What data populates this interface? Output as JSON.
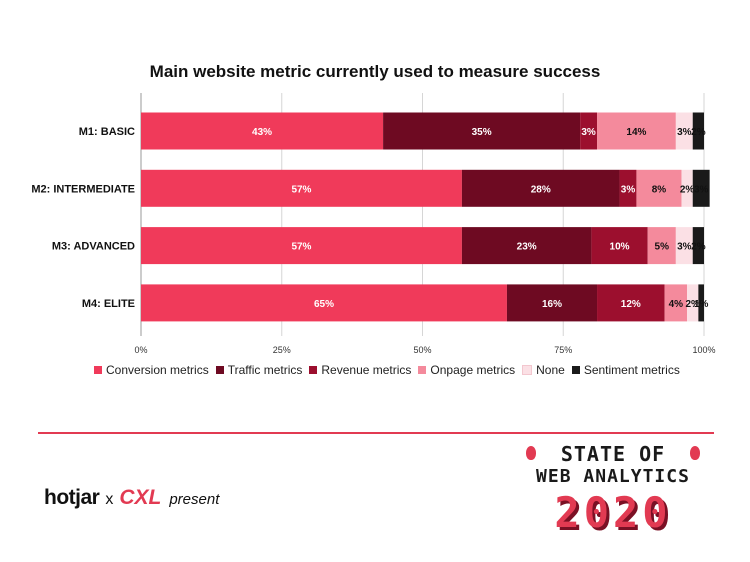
{
  "chart_data": {
    "type": "bar",
    "orientation": "horizontal",
    "stacked": true,
    "title": "Main website metric currently used to measure success",
    "categories": [
      "M1: BASIC",
      "M2: INTERMEDIATE",
      "M3: ADVANCED",
      "M4: ELITE"
    ],
    "series": [
      {
        "name": "Conversion metrics",
        "color": "#f03a5a",
        "values": [
          43,
          57,
          57,
          65
        ],
        "labels": [
          "43%",
          "57%",
          "57%",
          "65%"
        ]
      },
      {
        "name": "Traffic metrics",
        "color": "#6e0a22",
        "values": [
          35,
          28,
          23,
          16
        ],
        "labels": [
          "35%",
          "28%",
          "23%",
          "16%"
        ]
      },
      {
        "name": "Revenue metrics",
        "color": "#9c0f2e",
        "values": [
          3,
          3,
          10,
          12
        ],
        "labels": [
          "3%",
          "3%",
          "10%",
          "12%"
        ]
      },
      {
        "name": "Onpage metrics",
        "color": "#f48a9c",
        "values": [
          14,
          8,
          5,
          4
        ],
        "labels": [
          "14%",
          "8%",
          "5%",
          "4%"
        ]
      },
      {
        "name": "None",
        "color": "#fbe0e5",
        "values": [
          3,
          2,
          3,
          2
        ],
        "labels": [
          "3%",
          "2%",
          "3%",
          "2%"
        ]
      },
      {
        "name": "Sentiment metrics",
        "color": "#1a1a1a",
        "values": [
          2,
          3,
          2,
          1
        ],
        "labels": [
          "2%",
          "3%",
          "2%",
          "1%"
        ]
      }
    ],
    "x_ticks": [
      "0%",
      "25%",
      "50%",
      "75%",
      "100%"
    ],
    "xlim": [
      0,
      100
    ],
    "grid": true,
    "legend": "bottom"
  },
  "footer": {
    "hotjar": "hotjar",
    "times": "x",
    "cxl": "CXL",
    "present": "present"
  },
  "badge": {
    "line1": "STATE OF",
    "line2": "WEB ANALYTICS",
    "year": "2020"
  }
}
